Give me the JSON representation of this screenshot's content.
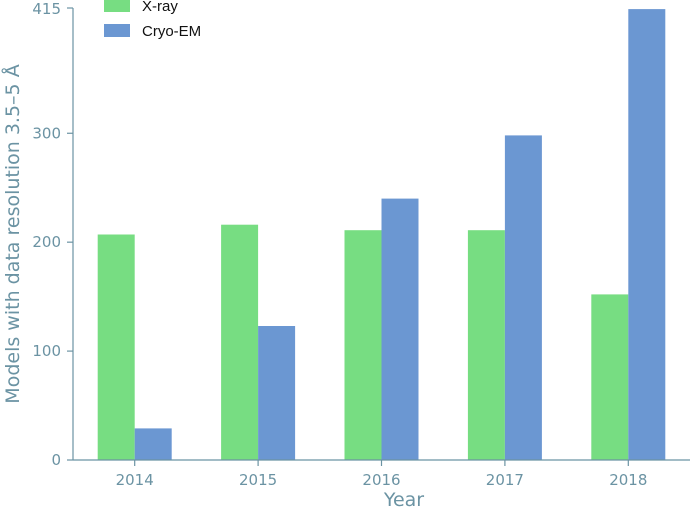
{
  "chart_data": {
    "type": "bar",
    "title": "",
    "xlabel": "Year",
    "ylabel": "Models with data resolution 3.5–5 Å",
    "categories": [
      "2014",
      "2015",
      "2016",
      "2017",
      "2018"
    ],
    "series": [
      {
        "name": "X-ray",
        "values": [
          207,
          216,
          211,
          211,
          152
        ],
        "color": "#77dd82"
      },
      {
        "name": "Cryo-EM",
        "values": [
          29,
          123,
          240,
          298,
          414
        ],
        "color": "#6b97d2"
      }
    ],
    "ylim": [
      0,
      415
    ],
    "yticks": [
      "0",
      "100",
      "200",
      "300",
      "415"
    ],
    "yticks_values": [
      0,
      100,
      200,
      300,
      415
    ],
    "grid": false,
    "legend_position": "top-left",
    "axis_color": "#6b93a3"
  }
}
